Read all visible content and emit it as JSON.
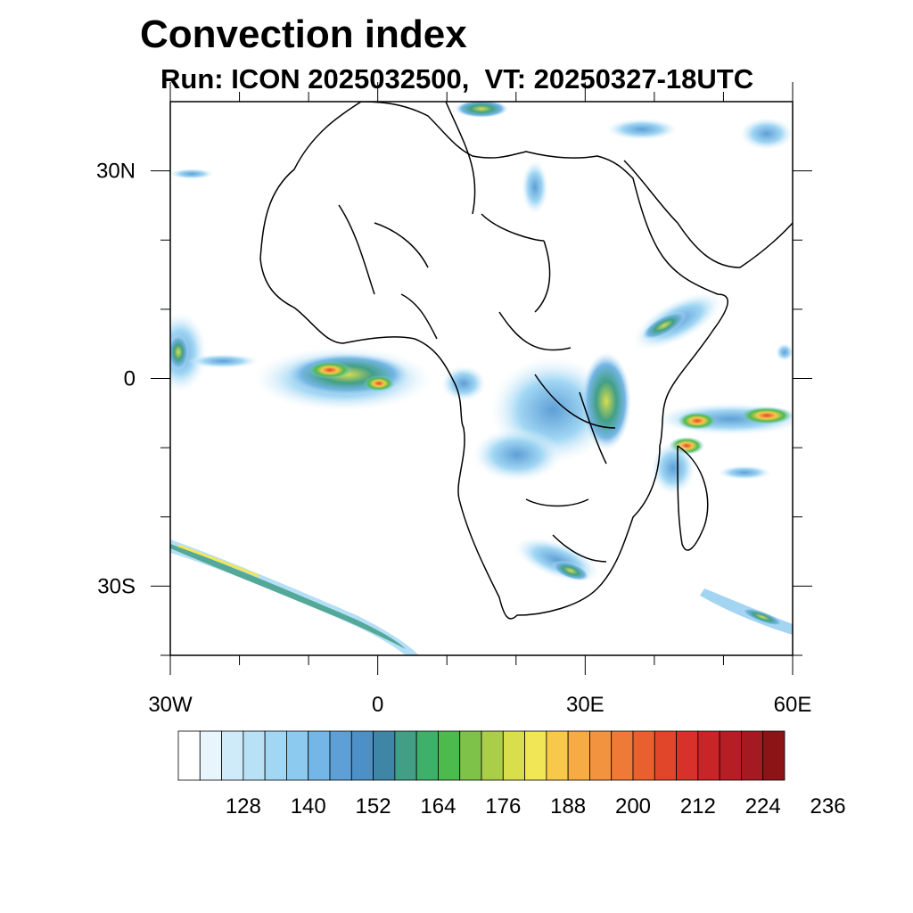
{
  "title": "Convection index",
  "subtitle": "Run: ICON 2025032500,  VT: 20250327-18UTC",
  "map": {
    "lon_range": [
      -30,
      60
    ],
    "lat_range": [
      -40,
      40
    ],
    "lon_ticks": [
      {
        "value": -30,
        "label": "30W"
      },
      {
        "value": 0,
        "label": "0"
      },
      {
        "value": 30,
        "label": "30E"
      },
      {
        "value": 60,
        "label": "60E"
      }
    ],
    "lat_ticks": [
      {
        "value": 30,
        "label": "30N"
      },
      {
        "value": 0,
        "label": "0"
      },
      {
        "value": -30,
        "label": "30S"
      }
    ],
    "minor_lon_ticks": [
      -20,
      -10,
      10,
      20,
      40,
      50
    ],
    "minor_lat_ticks": [
      20,
      10,
      -10,
      -20,
      -40
    ]
  },
  "colorbar": {
    "labels": [
      "128",
      "140",
      "152",
      "164",
      "176",
      "188",
      "200",
      "212",
      "224",
      "236"
    ],
    "colors": [
      "#ffffff",
      "#e8f5fc",
      "#cfeaf8",
      "#b9e1f6",
      "#a2d7f4",
      "#8ccbef",
      "#74b6e6",
      "#5e9fd6",
      "#4d90c8",
      "#3f86a6",
      "#429f86",
      "#3fb06a",
      "#4cba4c",
      "#7ec24a",
      "#aace4a",
      "#d8de4c",
      "#f1e656",
      "#f7c84c",
      "#f6ab44",
      "#f29340",
      "#ef7a38",
      "#e9602f",
      "#e2462a",
      "#d8302a",
      "#c92428",
      "#b61e25",
      "#a51a22",
      "#8c1416"
    ]
  }
}
